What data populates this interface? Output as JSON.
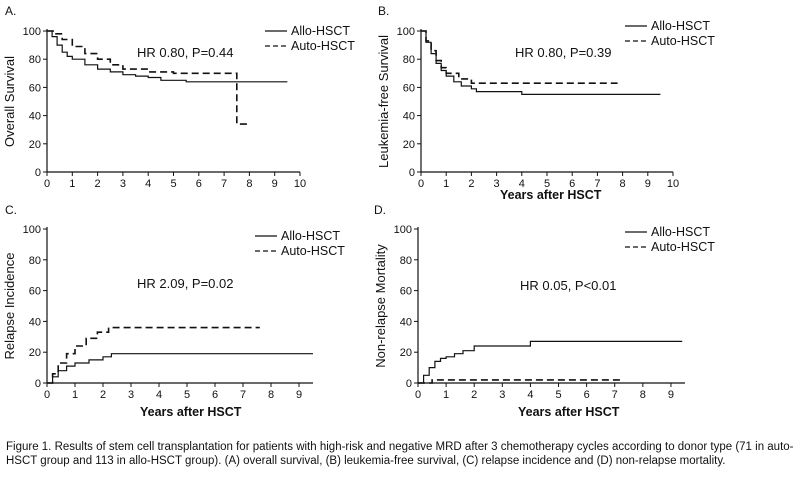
{
  "caption": "Figure 1. Results of stem cell transplantation for patients with high-risk and negative MRD after 3 chemotherapy cycles according to donor type (71 in auto-HSCT group and 113 in allo-HSCT group). (A) overall survival, (B) leukemia-free survival, (C) relapse incidence and (D) non-relapse mortality.",
  "chart_data": [
    {
      "panel": "A.",
      "type": "line",
      "ylabel": "Overall Survival",
      "xlabel": "",
      "annotation": "HR 0.80, P=0.44",
      "xlim": [
        0,
        10
      ],
      "ylim": [
        0,
        100
      ],
      "xticks": [
        "0",
        "1",
        "2",
        "3",
        "4",
        "5",
        "6",
        "7",
        "8",
        "9",
        "10"
      ],
      "yticks": [
        "0",
        "20",
        "40",
        "60",
        "80",
        "100"
      ],
      "series": [
        {
          "name": "Allo-HSCT",
          "style": "solid",
          "x": [
            0,
            0.2,
            0.4,
            0.6,
            0.8,
            1.0,
            1.5,
            2.0,
            2.5,
            3.0,
            3.5,
            4.0,
            4.5,
            5.5,
            9.5
          ],
          "y": [
            100,
            96,
            90,
            85,
            82,
            80,
            76,
            73,
            71,
            69,
            68,
            67,
            65,
            64,
            64
          ]
        },
        {
          "name": "Auto-HSCT",
          "style": "dashed",
          "x": [
            0,
            0.3,
            0.6,
            1.0,
            1.5,
            2.0,
            2.5,
            3.0,
            4.0,
            5.0,
            7.5,
            7.5,
            7.9
          ],
          "y": [
            100,
            98,
            94,
            89,
            84,
            80,
            76,
            73,
            71,
            70,
            70,
            34,
            34
          ]
        }
      ]
    },
    {
      "panel": "B.",
      "type": "line",
      "ylabel": "Leukemia-free Survival",
      "xlabel": "Years after HSCT",
      "annotation": "HR 0.80, P=0.39",
      "xlim": [
        0,
        10
      ],
      "ylim": [
        0,
        100
      ],
      "xticks": [
        "0",
        "1",
        "2",
        "3",
        "4",
        "5",
        "6",
        "7",
        "8",
        "9",
        "10"
      ],
      "yticks": [
        "0",
        "20",
        "40",
        "60",
        "80",
        "100"
      ],
      "series": [
        {
          "name": "Allo-HSCT",
          "style": "solid",
          "x": [
            0,
            0.2,
            0.4,
            0.6,
            0.8,
            1.0,
            1.3,
            1.6,
            2.0,
            2.2,
            4.0,
            9.5
          ],
          "y": [
            100,
            92,
            84,
            77,
            72,
            68,
            64,
            61,
            59,
            57,
            55,
            55
          ]
        },
        {
          "name": "Auto-HSCT",
          "style": "dashed",
          "x": [
            0,
            0.2,
            0.4,
            0.6,
            0.8,
            1.0,
            1.5,
            2.0,
            7.8
          ],
          "y": [
            100,
            93,
            86,
            79,
            74,
            70,
            66,
            63,
            63
          ]
        }
      ]
    },
    {
      "panel": "C.",
      "type": "line",
      "ylabel": "Relapse Incidence",
      "xlabel": "Years after HSCT",
      "annotation": "HR 2.09, P=0.02",
      "xlim": [
        0,
        9.5
      ],
      "ylim": [
        0,
        100
      ],
      "xticks": [
        "0",
        "1",
        "2",
        "3",
        "4",
        "5",
        "6",
        "7",
        "8",
        "9"
      ],
      "yticks": [
        "0",
        "20",
        "40",
        "60",
        "80",
        "100"
      ],
      "series": [
        {
          "name": "Allo-HSCT",
          "style": "solid",
          "x": [
            0,
            0.2,
            0.4,
            0.7,
            1.0,
            1.5,
            2.0,
            2.3,
            9.5
          ],
          "y": [
            0,
            4,
            8,
            11,
            13,
            15,
            17,
            19,
            19
          ]
        },
        {
          "name": "Auto-HSCT",
          "style": "dashed",
          "x": [
            0,
            0.2,
            0.4,
            0.7,
            1.0,
            1.4,
            1.8,
            2.2,
            7.6
          ],
          "y": [
            0,
            6,
            13,
            19,
            24,
            29,
            33,
            36,
            36
          ]
        }
      ]
    },
    {
      "panel": "D.",
      "type": "line",
      "ylabel": "Non-relapse Mortality",
      "xlabel": "Years after HSCT",
      "annotation": "HR 0.05, P<0.01",
      "xlim": [
        0,
        9.5
      ],
      "ylim": [
        0,
        100
      ],
      "xticks": [
        "0",
        "1",
        "2",
        "3",
        "4",
        "5",
        "6",
        "7",
        "8",
        "9"
      ],
      "yticks": [
        "0",
        "20",
        "40",
        "60",
        "80",
        "100"
      ],
      "series": [
        {
          "name": "Allo-HSCT",
          "style": "solid",
          "x": [
            0,
            0.2,
            0.4,
            0.6,
            0.8,
            1.0,
            1.3,
            1.6,
            2.0,
            4.0,
            9.4
          ],
          "y": [
            0,
            5,
            10,
            14,
            16,
            17,
            19,
            21,
            24,
            27,
            27
          ]
        },
        {
          "name": "Auto-HSCT",
          "style": "dashed",
          "x": [
            0,
            0.5,
            7.3
          ],
          "y": [
            0,
            2,
            2
          ]
        }
      ]
    }
  ]
}
